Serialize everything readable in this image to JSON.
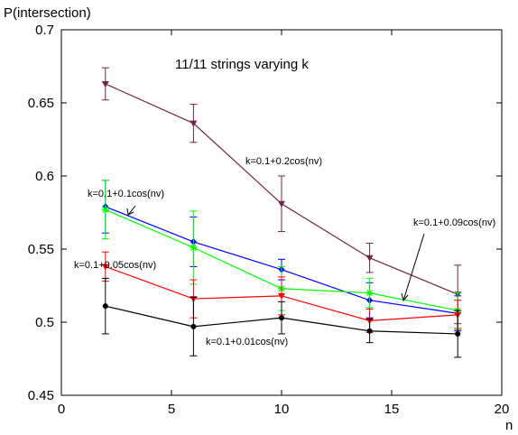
{
  "chart_data": {
    "type": "line",
    "title": "11/11 strings varying k",
    "xlabel": "n",
    "ylabel": "P(intersection)",
    "xlim": [
      0,
      20
    ],
    "ylim": [
      0.45,
      0.7
    ],
    "xticks": [
      "0",
      "5",
      "10",
      "15",
      "20"
    ],
    "yticks": [
      "0.45",
      "0.5",
      "0.55",
      "0.6",
      "0.65",
      "0.7"
    ],
    "grid": false,
    "x": [
      2,
      6,
      10,
      14,
      18
    ],
    "series": [
      {
        "name": "k=0.1+0.2cos(nv)",
        "color": "#702448",
        "marker": "triangle-down",
        "values": [
          0.663,
          0.636,
          0.581,
          0.544,
          0.519
        ],
        "errors": [
          0.011,
          0.013,
          0.019,
          0.01,
          0.02
        ]
      },
      {
        "name": "k=0.1+0.1cos(nv)",
        "color": "#0000ff",
        "marker": "diamond",
        "values": [
          0.579,
          0.555,
          0.536,
          0.515,
          0.506
        ],
        "errors": [
          0.018,
          0.017,
          0.007,
          0.012,
          0.012
        ]
      },
      {
        "name": "k=0.1+0.09cos(nv)",
        "color": "#00ff00",
        "marker": "star",
        "values": [
          0.577,
          0.551,
          0.523,
          0.52,
          0.508
        ],
        "errors": [
          0.02,
          0.025,
          0.015,
          0.01,
          0.012
        ]
      },
      {
        "name": "k=0.1+0.05cos(nv)",
        "color": "#ff0000",
        "marker": "triangle-down",
        "values": [
          0.538,
          0.516,
          0.518,
          0.501,
          0.505
        ],
        "errors": [
          0.01,
          0.013,
          0.013,
          0.008,
          0.01
        ]
      },
      {
        "name": "k=0.1+0.01cos(nv)",
        "color": "#000000",
        "marker": "circle",
        "values": [
          0.511,
          0.497,
          0.503,
          0.494,
          0.492
        ],
        "errors": [
          0.019,
          0.02,
          0.011,
          0.008,
          0.016
        ]
      }
    ],
    "annotations": [
      {
        "text": "k=0.1+0.2cos(nv)",
        "series": 0
      },
      {
        "text": "k=0.1+0.1cos(nv)",
        "series": 1
      },
      {
        "text": "k=0.1+0.09cos(nv)",
        "series": 2
      },
      {
        "text": "k=0.1+0.05cos(nv)",
        "series": 3
      },
      {
        "text": "k=0.1+0.01cos(nv)",
        "series": 4
      }
    ]
  }
}
